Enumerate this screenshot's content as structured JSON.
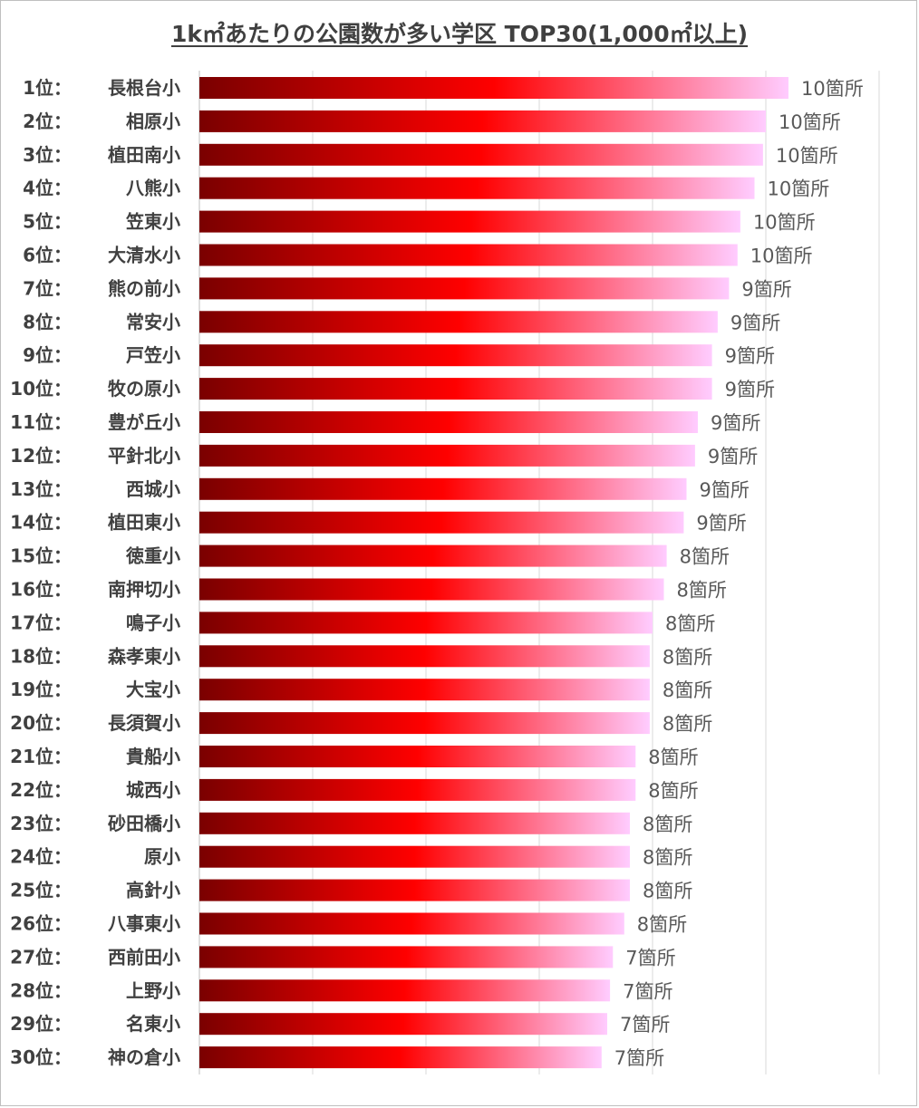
{
  "title": "1k㎡あたりの公園数が多い学区 TOP30(1,000㎡以上)",
  "colors": {
    "bar_start": "#7a0000",
    "bar_mid": "#ff0000",
    "bar_end": "#ffccff",
    "grid": "#d9d9d9",
    "text": "#404040"
  },
  "chart_data": {
    "type": "bar",
    "orientation": "horizontal",
    "title": "1k㎡あたりの公園数が多い学区 TOP30(1,000㎡以上)",
    "xlim": [
      0,
      12
    ],
    "grid": true,
    "value_unit": "箇所",
    "ranks": [
      "1位：",
      "2位：",
      "3位：",
      "4位：",
      "5位：",
      "6位：",
      "7位：",
      "8位：",
      "9位：",
      "10位：",
      "11位：",
      "12位：",
      "13位：",
      "14位：",
      "15位：",
      "16位：",
      "17位：",
      "18位：",
      "19位：",
      "20位：",
      "21位：",
      "22位：",
      "23位：",
      "24位：",
      "25位：",
      "26位：",
      "27位：",
      "28位：",
      "29位：",
      "30位："
    ],
    "categories": [
      "長根台小",
      "相原小",
      "植田南小",
      "八熊小",
      "笠東小",
      "大清水小",
      "熊の前小",
      "常安小",
      "戸笠小",
      "牧の原小",
      "豊が丘小",
      "平針北小",
      "西城小",
      "植田東小",
      "徳重小",
      "南押切小",
      "鳴子小",
      "森孝東小",
      "大宝小",
      "長須賀小",
      "貴船小",
      "城西小",
      "砂田橋小",
      "原小",
      "高針小",
      "八事東小",
      "西前田小",
      "上野小",
      "名東小",
      "神の倉小"
    ],
    "values": [
      10.4,
      10.0,
      9.95,
      9.8,
      9.55,
      9.5,
      9.35,
      9.15,
      9.05,
      9.05,
      8.8,
      8.75,
      8.6,
      8.55,
      8.25,
      8.2,
      8.0,
      7.95,
      7.95,
      7.95,
      7.7,
      7.7,
      7.6,
      7.6,
      7.6,
      7.5,
      7.3,
      7.25,
      7.2,
      7.1
    ],
    "value_labels": [
      "10箇所",
      "10箇所",
      "10箇所",
      "10箇所",
      "10箇所",
      "10箇所",
      "9箇所",
      "9箇所",
      "9箇所",
      "9箇所",
      "9箇所",
      "9箇所",
      "9箇所",
      "9箇所",
      "8箇所",
      "8箇所",
      "8箇所",
      "8箇所",
      "8箇所",
      "8箇所",
      "8箇所",
      "8箇所",
      "8箇所",
      "8箇所",
      "8箇所",
      "8箇所",
      "7箇所",
      "7箇所",
      "7箇所",
      "7箇所"
    ]
  }
}
